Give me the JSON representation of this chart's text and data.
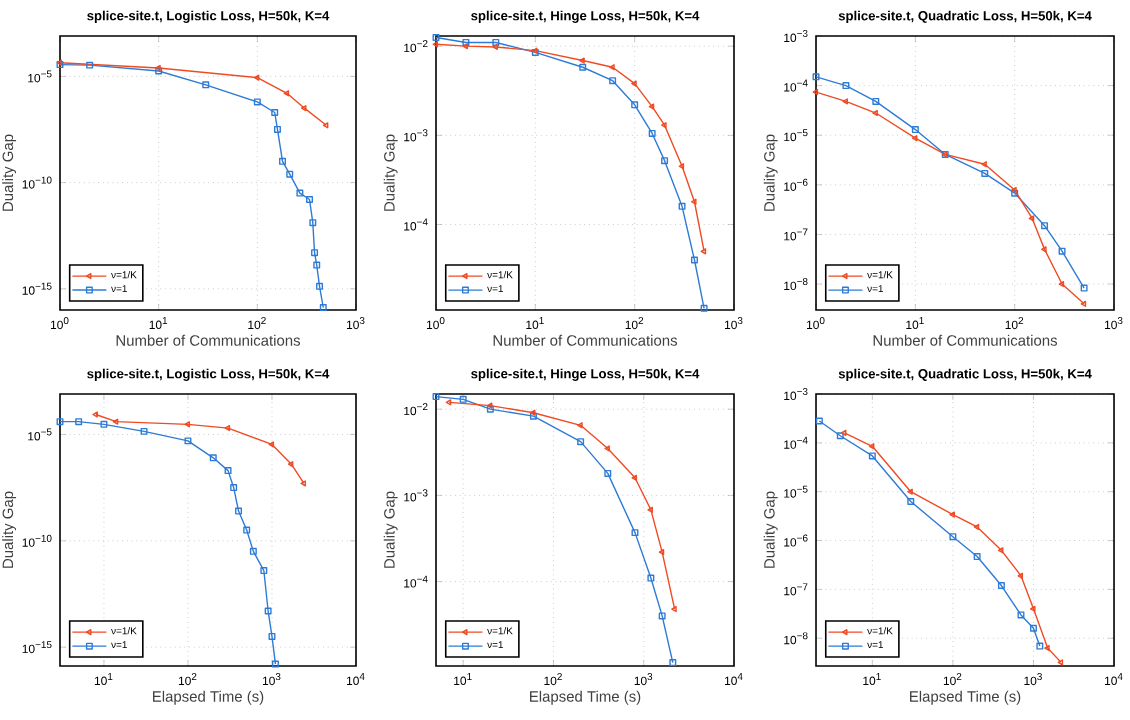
{
  "chart_data": [
    {
      "type": "line",
      "title": "splice-site.t, Logistic Loss, H=50k, K=4",
      "xlabel": "Number of Communications",
      "ylabel": "Duality Gap",
      "log": "xy",
      "grid": true,
      "legend": "bottom left",
      "xlim": [
        1,
        1000
      ],
      "ylim": [
        1e-16,
        0.0008
      ],
      "xticks": [
        {
          "value": 1,
          "label": "10$^{0}$"
        },
        {
          "value": 10,
          "label": "10$^{1}$"
        },
        {
          "value": 100,
          "label": "10$^{2}$"
        },
        {
          "value": 1000,
          "label": "10$^{3}$"
        }
      ],
      "yticks": [
        {
          "value": 1e-15,
          "label": "10$^{−15}$"
        },
        {
          "value": 1e-10,
          "label": "10$^{−10}$"
        },
        {
          "value": 1e-05,
          "label": "10$^{−5}$"
        }
      ],
      "series": [
        {
          "name": "ν=1/K",
          "color": "#f04a23",
          "marker": "triangle",
          "x": [
            1,
            10,
            100,
            200,
            300,
            500
          ],
          "values": [
            4.4e-05,
            2.5e-05,
            8.7e-06,
            1.6e-06,
            3.2e-07,
            5e-08
          ]
        },
        {
          "name": "ν=1",
          "color": "#2d7bd6",
          "marker": "square",
          "x": [
            1,
            2,
            10,
            30,
            100,
            150,
            160,
            180,
            213,
            270,
            338,
            365,
            380,
            400,
            427,
            466
          ],
          "values": [
            3.6e-05,
            3.4e-05,
            1.8e-05,
            4e-06,
            6.3e-07,
            2e-07,
            3.2e-08,
            1e-09,
            2.5e-10,
            3.2e-11,
            1.6e-11,
            1.3e-12,
            5e-14,
            1.3e-14,
            1.3e-15,
            1.3e-16
          ]
        }
      ]
    },
    {
      "type": "line",
      "title": "splice-site.t, Hinge Loss, H=50k, K=4",
      "xlabel": "Number of Communications",
      "ylabel": "Duality Gap",
      "log": "xy",
      "grid": true,
      "legend": "bottom left",
      "xlim": [
        1,
        1000
      ],
      "ylim": [
        1.1e-05,
        0.013
      ],
      "xticks": [
        {
          "value": 1,
          "label": "10$^{0}$"
        },
        {
          "value": 10,
          "label": "10$^{1}$"
        },
        {
          "value": 100,
          "label": "10$^{2}$"
        },
        {
          "value": 1000,
          "label": "10$^{3}$"
        }
      ],
      "yticks": [
        {
          "value": 0.0001,
          "label": "10$^{−4}$"
        },
        {
          "value": 0.001,
          "label": "10$^{−3}$"
        },
        {
          "value": 0.01,
          "label": "10$^{−2}$"
        }
      ],
      "series": [
        {
          "name": "ν=1/K",
          "color": "#f04a23",
          "marker": "triangle",
          "x": [
            1,
            2,
            4,
            10,
            30,
            60,
            100,
            150,
            200,
            300,
            400,
            500
          ],
          "values": [
            0.0105,
            0.01,
            0.0098,
            0.0089,
            0.0069,
            0.0058,
            0.0038,
            0.0021,
            0.0013,
            0.00045,
            0.00018,
            5e-05
          ]
        },
        {
          "name": "ν=1",
          "color": "#2d7bd6",
          "marker": "square",
          "x": [
            1,
            2,
            4,
            10,
            30,
            60,
            100,
            150,
            200,
            300,
            400,
            500
          ],
          "values": [
            0.0125,
            0.011,
            0.011,
            0.0085,
            0.0058,
            0.0041,
            0.0022,
            0.00105,
            0.00052,
            0.00016,
            4e-05,
            1.15e-05
          ]
        }
      ]
    },
    {
      "type": "line",
      "title": "splice-site.t, Quadratic Loss, H=50k, K=4",
      "xlabel": "Number of Communications",
      "ylabel": "Duality Gap",
      "log": "xy",
      "grid": true,
      "legend": "bottom left",
      "xlim": [
        1,
        1000
      ],
      "ylim": [
        3e-09,
        0.001
      ],
      "xticks": [
        {
          "value": 1,
          "label": "10$^{0}$"
        },
        {
          "value": 10,
          "label": "10$^{1}$"
        },
        {
          "value": 100,
          "label": "10$^{2}$"
        },
        {
          "value": 1000,
          "label": "10$^{3}$"
        }
      ],
      "yticks": [
        {
          "value": 1e-08,
          "label": "10$^{−8}$"
        },
        {
          "value": 1e-07,
          "label": "10$^{−7}$"
        },
        {
          "value": 1e-06,
          "label": "10$^{−6}$"
        },
        {
          "value": 1e-05,
          "label": "10$^{−5}$"
        },
        {
          "value": 0.0001,
          "label": "10$^{−4}$"
        },
        {
          "value": 0.001,
          "label": "10$^{−3}$"
        }
      ],
      "series": [
        {
          "name": "ν=1/K",
          "color": "#f04a23",
          "marker": "triangle",
          "x": [
            1,
            2,
            4,
            10,
            20,
            50,
            100,
            150,
            200,
            300,
            500
          ],
          "values": [
            7.4e-05,
            4.8e-05,
            2.8e-05,
            8.7e-06,
            4.1e-06,
            2.6e-06,
            7.9e-07,
            2.1e-07,
            5e-08,
            1e-08,
            4e-09
          ]
        },
        {
          "name": "ν=1",
          "color": "#2d7bd6",
          "marker": "square",
          "x": [
            1,
            2,
            4,
            10,
            20,
            50,
            100,
            200,
            300,
            500
          ],
          "values": [
            0.00015,
            0.0001,
            4.8e-05,
            1.3e-05,
            4.1e-06,
            1.7e-06,
            6.8e-07,
            1.5e-07,
            4.6e-08,
            8.3e-09
          ]
        }
      ]
    },
    {
      "type": "line",
      "title": "splice-site.t, Logistic Loss, H=50k, K=4",
      "xlabel": "Elapsed Time (s)",
      "ylabel": "Duality Gap",
      "log": "xy",
      "grid": true,
      "legend": "bottom left",
      "xlim": [
        3,
        10000
      ],
      "ylim": [
        1.3e-16,
        0.0008
      ],
      "xticks": [
        {
          "value": 10,
          "label": "10$^{1}$"
        },
        {
          "value": 100,
          "label": "10$^{2}$"
        },
        {
          "value": 1000,
          "label": "10$^{3}$"
        },
        {
          "value": 10000,
          "label": "10$^{4}$"
        }
      ],
      "yticks": [
        {
          "value": 1e-15,
          "label": "10$^{−15}$"
        },
        {
          "value": 1e-10,
          "label": "10$^{−10}$"
        },
        {
          "value": 1e-05,
          "label": "10$^{−5}$"
        }
      ],
      "series": [
        {
          "name": "ν=1/K",
          "color": "#f04a23",
          "marker": "triangle",
          "x": [
            8,
            14,
            100,
            300,
            1000,
            1700,
            2400
          ],
          "values": [
            8.7e-05,
            4e-05,
            3e-05,
            2e-05,
            3.4e-06,
            4e-07,
            5e-08
          ]
        },
        {
          "name": "ν=1",
          "color": "#2d7bd6",
          "marker": "square",
          "x": [
            3,
            5,
            10,
            30,
            100,
            200,
            300,
            350,
            400,
            500,
            600,
            800,
            900,
            1000,
            1100
          ],
          "values": [
            4e-05,
            4e-05,
            3e-05,
            1.4e-05,
            5e-06,
            8e-07,
            2e-07,
            3.2e-08,
            2.5e-09,
            3.2e-10,
            3.2e-11,
            4e-12,
            5e-14,
            3.2e-15,
            1.6e-16
          ]
        }
      ]
    },
    {
      "type": "line",
      "title": "splice-site.t, Hinge Loss, H=50k, K=4",
      "xlabel": "Elapsed Time (s)",
      "ylabel": "Duality Gap",
      "log": "xy",
      "grid": true,
      "legend": "bottom left",
      "xlim": [
        5,
        10000
      ],
      "ylim": [
        1.05e-05,
        0.015
      ],
      "xticks": [
        {
          "value": 10,
          "label": "10$^{1}$"
        },
        {
          "value": 100,
          "label": "10$^{2}$"
        },
        {
          "value": 1000,
          "label": "10$^{3}$"
        },
        {
          "value": 10000,
          "label": "10$^{4}$"
        }
      ],
      "yticks": [
        {
          "value": 0.0001,
          "label": "10$^{−4}$"
        },
        {
          "value": 0.001,
          "label": "10$^{−3}$"
        },
        {
          "value": 0.01,
          "label": "10$^{−2}$"
        }
      ],
      "series": [
        {
          "name": "ν=1/K",
          "color": "#f04a23",
          "marker": "triangle",
          "x": [
            7,
            20,
            60,
            200,
            400,
            800,
            1200,
            1600,
            2200
          ],
          "values": [
            0.012,
            0.011,
            0.0091,
            0.0065,
            0.0035,
            0.0016,
            0.00068,
            0.00022,
            4.8e-05
          ]
        },
        {
          "name": "ν=1",
          "color": "#2d7bd6",
          "marker": "square",
          "x": [
            5,
            10,
            20,
            60,
            200,
            400,
            800,
            1200,
            1600,
            2100
          ],
          "values": [
            0.014,
            0.013,
            0.01,
            0.0083,
            0.0042,
            0.0018,
            0.00037,
            0.00011,
            4e-05,
            1.15e-05
          ]
        }
      ]
    },
    {
      "type": "line",
      "title": "splice-site.t, Quadratic Loss, H=50k, K=4",
      "xlabel": "Elapsed Time (s)",
      "ylabel": "Duality Gap",
      "log": "xy",
      "grid": true,
      "legend": "bottom left",
      "xlim": [
        2,
        10000
      ],
      "ylim": [
        2.7e-09,
        0.001
      ],
      "xticks": [
        {
          "value": 10,
          "label": "10$^{1}$"
        },
        {
          "value": 100,
          "label": "10$^{2}$"
        },
        {
          "value": 1000,
          "label": "10$^{3}$"
        },
        {
          "value": 10000,
          "label": "10$^{4}$"
        }
      ],
      "yticks": [
        {
          "value": 1e-08,
          "label": "10$^{−8}$"
        },
        {
          "value": 1e-07,
          "label": "10$^{−7}$"
        },
        {
          "value": 1e-06,
          "label": "10$^{−6}$"
        },
        {
          "value": 1e-05,
          "label": "10$^{−5}$"
        },
        {
          "value": 0.0001,
          "label": "10$^{−4}$"
        },
        {
          "value": 0.001,
          "label": "10$^{−3}$"
        }
      ],
      "series": [
        {
          "name": "ν=1/K",
          "color": "#f04a23",
          "marker": "triangle",
          "x": [
            4.5,
            10,
            30,
            100,
            200,
            400,
            700,
            1000,
            1500,
            2200
          ],
          "values": [
            0.00016,
            8.5e-05,
            1e-05,
            3.4e-06,
            1.9e-06,
            6.3e-07,
            1.9e-07,
            4e-08,
            6.3e-09,
            3.2e-09
          ]
        },
        {
          "name": "ν=1",
          "color": "#2d7bd6",
          "marker": "square",
          "x": [
            2.2,
            4,
            10,
            30,
            100,
            200,
            400,
            700,
            1000,
            1200
          ],
          "values": [
            0.00028,
            0.00014,
            5.4e-05,
            6.3e-06,
            1.2e-06,
            4.7e-07,
            1.2e-07,
            3e-08,
            1.6e-08,
            6.9e-09
          ]
        }
      ]
    }
  ]
}
